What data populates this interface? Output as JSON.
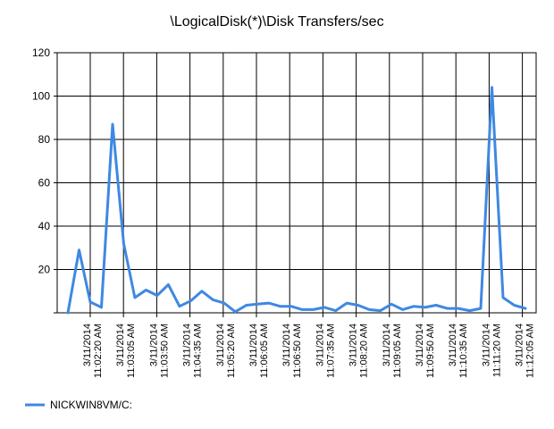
{
  "chart_data": {
    "type": "line",
    "title": "\\LogicalDisk(*)\\Disk Transfers/sec",
    "xlabel": "",
    "ylabel": "",
    "ylim": [
      0,
      120
    ],
    "y_ticks": [
      20,
      40,
      60,
      80,
      100,
      120
    ],
    "grid": true,
    "legend_position": "bottom-left",
    "x_tick_labels": [
      {
        "date": "3/11/2014",
        "time": "11:02:20 AM"
      },
      {
        "date": "3/11/2014",
        "time": "11:03:05 AM"
      },
      {
        "date": "3/11/2014",
        "time": "11:03:50 AM"
      },
      {
        "date": "3/11/2014",
        "time": "11:04:35 AM"
      },
      {
        "date": "3/11/2014",
        "time": "11:05:20 AM"
      },
      {
        "date": "3/11/2014",
        "time": "11:06:05 AM"
      },
      {
        "date": "3/11/2014",
        "time": "11:06:50 AM"
      },
      {
        "date": "3/11/2014",
        "time": "11:07:35 AM"
      },
      {
        "date": "3/11/2014",
        "time": "11:08:20 AM"
      },
      {
        "date": "3/11/2014",
        "time": "11:09:05 AM"
      },
      {
        "date": "3/11/2014",
        "time": "11:09:50 AM"
      },
      {
        "date": "3/11/2014",
        "time": "11:10:35 AM"
      },
      {
        "date": "3/11/2014",
        "time": "11:11:20 AM"
      },
      {
        "date": "3/11/2014",
        "time": "11:12:05 AM"
      }
    ],
    "series": [
      {
        "name": "NICKWIN8VM/C:",
        "color": "#3f88e3",
        "values": [
          0,
          29,
          5,
          2.5,
          87,
          32,
          7,
          10.5,
          8,
          13,
          3,
          5.5,
          10,
          6,
          4.5,
          0.5,
          3.5,
          4,
          4.5,
          3,
          3,
          1.5,
          1.5,
          2.5,
          1,
          4.5,
          3.5,
          1.5,
          1,
          4,
          1.5,
          3,
          2.5,
          3.5,
          2,
          2,
          1,
          2,
          104,
          7,
          3.5,
          2
        ]
      }
    ]
  }
}
